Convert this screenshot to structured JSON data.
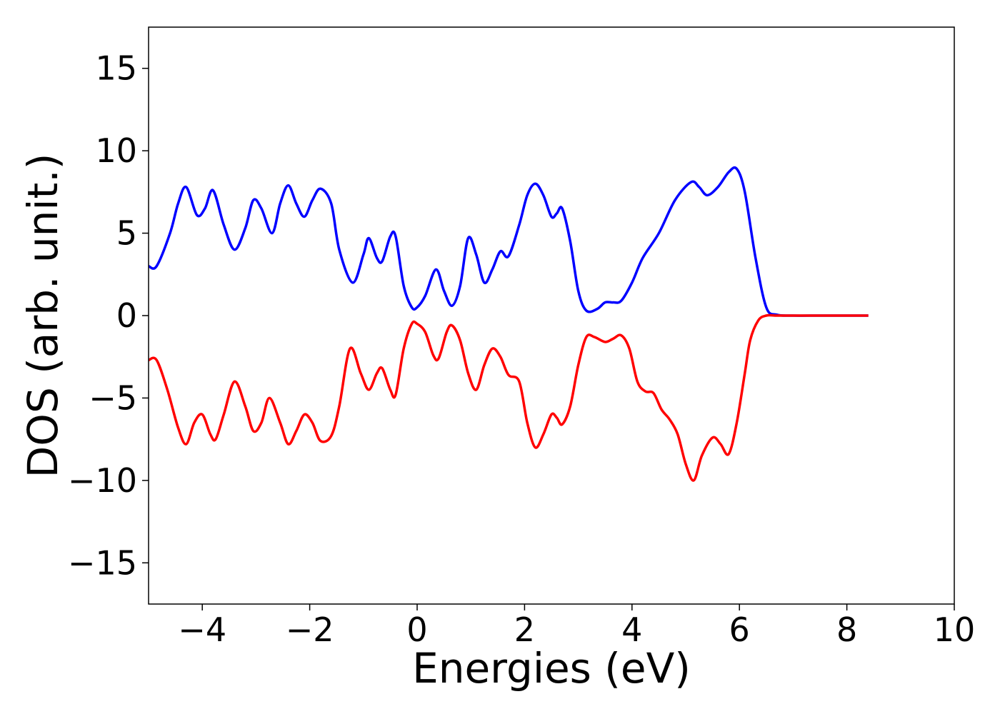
{
  "chart_data": {
    "type": "line",
    "xlabel": "Energies (eV)",
    "ylabel": "DOS (arb. unit.)",
    "xlim": [
      -5,
      10
    ],
    "ylim": [
      -17.5,
      17.5
    ],
    "x_ticks": [
      -4,
      -2,
      0,
      2,
      4,
      6,
      8,
      10
    ],
    "x_tick_labels": [
      "−4",
      "−2",
      "0",
      "2",
      "4",
      "6",
      "8",
      "10"
    ],
    "y_ticks": [
      15,
      10,
      5,
      0,
      -5,
      -10,
      -15
    ],
    "y_tick_labels": [
      "15",
      "10",
      "5",
      "0",
      "−5",
      "−10",
      "−15"
    ],
    "grid": false,
    "series": [
      {
        "color": "#0000ff",
        "x": [
          -5.0,
          -4.85,
          -4.6,
          -4.45,
          -4.3,
          -4.1,
          -3.95,
          -3.8,
          -3.6,
          -3.4,
          -3.2,
          -3.05,
          -2.9,
          -2.7,
          -2.55,
          -2.4,
          -2.25,
          -2.1,
          -1.95,
          -1.8,
          -1.6,
          -1.45,
          -1.2,
          -1.0,
          -0.9,
          -0.75,
          -0.65,
          -0.5,
          -0.4,
          -0.25,
          -0.1,
          0.0,
          0.15,
          0.35,
          0.5,
          0.65,
          0.8,
          0.95,
          1.1,
          1.25,
          1.4,
          1.55,
          1.7,
          1.9,
          2.05,
          2.2,
          2.35,
          2.5,
          2.6,
          2.7,
          2.85,
          3.0,
          3.15,
          3.35,
          3.5,
          3.65,
          3.8,
          4.0,
          4.2,
          4.5,
          4.8,
          5.1,
          5.25,
          5.4,
          5.6,
          5.8,
          5.95,
          6.1,
          6.3,
          6.5,
          6.7,
          7.0,
          7.5,
          8.0,
          8.4
        ],
        "y": [
          3.0,
          3.0,
          5.0,
          6.8,
          7.8,
          6.1,
          6.5,
          7.6,
          5.5,
          4.0,
          5.3,
          7.0,
          6.5,
          5.0,
          6.8,
          7.9,
          6.8,
          6.0,
          7.0,
          7.7,
          6.8,
          4.0,
          2.0,
          3.7,
          4.7,
          3.5,
          3.3,
          4.8,
          4.8,
          1.8,
          0.5,
          0.5,
          1.2,
          2.8,
          1.5,
          0.6,
          1.8,
          4.7,
          3.7,
          2.0,
          2.8,
          3.9,
          3.6,
          5.5,
          7.3,
          8.0,
          7.3,
          6.0,
          6.2,
          6.5,
          4.5,
          1.5,
          0.3,
          0.4,
          0.8,
          0.8,
          0.9,
          2.0,
          3.5,
          5.0,
          7.0,
          8.1,
          7.8,
          7.3,
          7.8,
          8.7,
          8.9,
          7.5,
          3.5,
          0.5,
          0.05,
          0.0,
          0.0,
          0.0,
          0.0
        ]
      },
      {
        "color": "#ff0000",
        "x": [
          -5.0,
          -4.85,
          -4.65,
          -4.45,
          -4.3,
          -4.15,
          -4.0,
          -3.85,
          -3.75,
          -3.6,
          -3.4,
          -3.2,
          -3.05,
          -2.9,
          -2.75,
          -2.55,
          -2.4,
          -2.25,
          -2.1,
          -1.95,
          -1.8,
          -1.6,
          -1.45,
          -1.25,
          -1.05,
          -0.9,
          -0.75,
          -0.65,
          -0.5,
          -0.4,
          -0.25,
          -0.1,
          0.0,
          0.15,
          0.3,
          0.4,
          0.55,
          0.65,
          0.8,
          0.95,
          1.1,
          1.25,
          1.4,
          1.55,
          1.7,
          1.9,
          2.05,
          2.2,
          2.35,
          2.5,
          2.6,
          2.7,
          2.85,
          3.0,
          3.15,
          3.3,
          3.5,
          3.65,
          3.8,
          3.95,
          4.1,
          4.25,
          4.4,
          4.55,
          4.7,
          4.85,
          5.0,
          5.15,
          5.3,
          5.5,
          5.65,
          5.8,
          5.95,
          6.1,
          6.2,
          6.35,
          6.5,
          6.7,
          7.0,
          7.5,
          8.0,
          8.4
        ],
        "y": [
          -2.7,
          -2.7,
          -4.5,
          -6.8,
          -7.8,
          -6.5,
          -6.0,
          -7.2,
          -7.5,
          -6.0,
          -4.0,
          -5.5,
          -7.0,
          -6.5,
          -5.0,
          -6.5,
          -7.8,
          -7.0,
          -6.0,
          -6.5,
          -7.6,
          -7.3,
          -5.5,
          -2.0,
          -3.5,
          -4.5,
          -3.5,
          -3.2,
          -4.5,
          -4.8,
          -2.0,
          -0.5,
          -0.5,
          -1.0,
          -2.4,
          -2.6,
          -1.0,
          -0.6,
          -1.5,
          -3.5,
          -4.5,
          -3.0,
          -2.0,
          -2.5,
          -3.6,
          -4.0,
          -6.5,
          -8.0,
          -7.2,
          -6.0,
          -6.2,
          -6.6,
          -5.5,
          -3.0,
          -1.3,
          -1.3,
          -1.6,
          -1.4,
          -1.2,
          -2.0,
          -4.0,
          -4.6,
          -4.7,
          -5.7,
          -6.3,
          -7.2,
          -9.0,
          -10.0,
          -8.5,
          -7.4,
          -7.8,
          -8.4,
          -6.5,
          -3.5,
          -1.5,
          -0.3,
          0.0,
          0.0,
          0.0,
          0.0,
          0.0,
          0.0
        ]
      }
    ]
  }
}
